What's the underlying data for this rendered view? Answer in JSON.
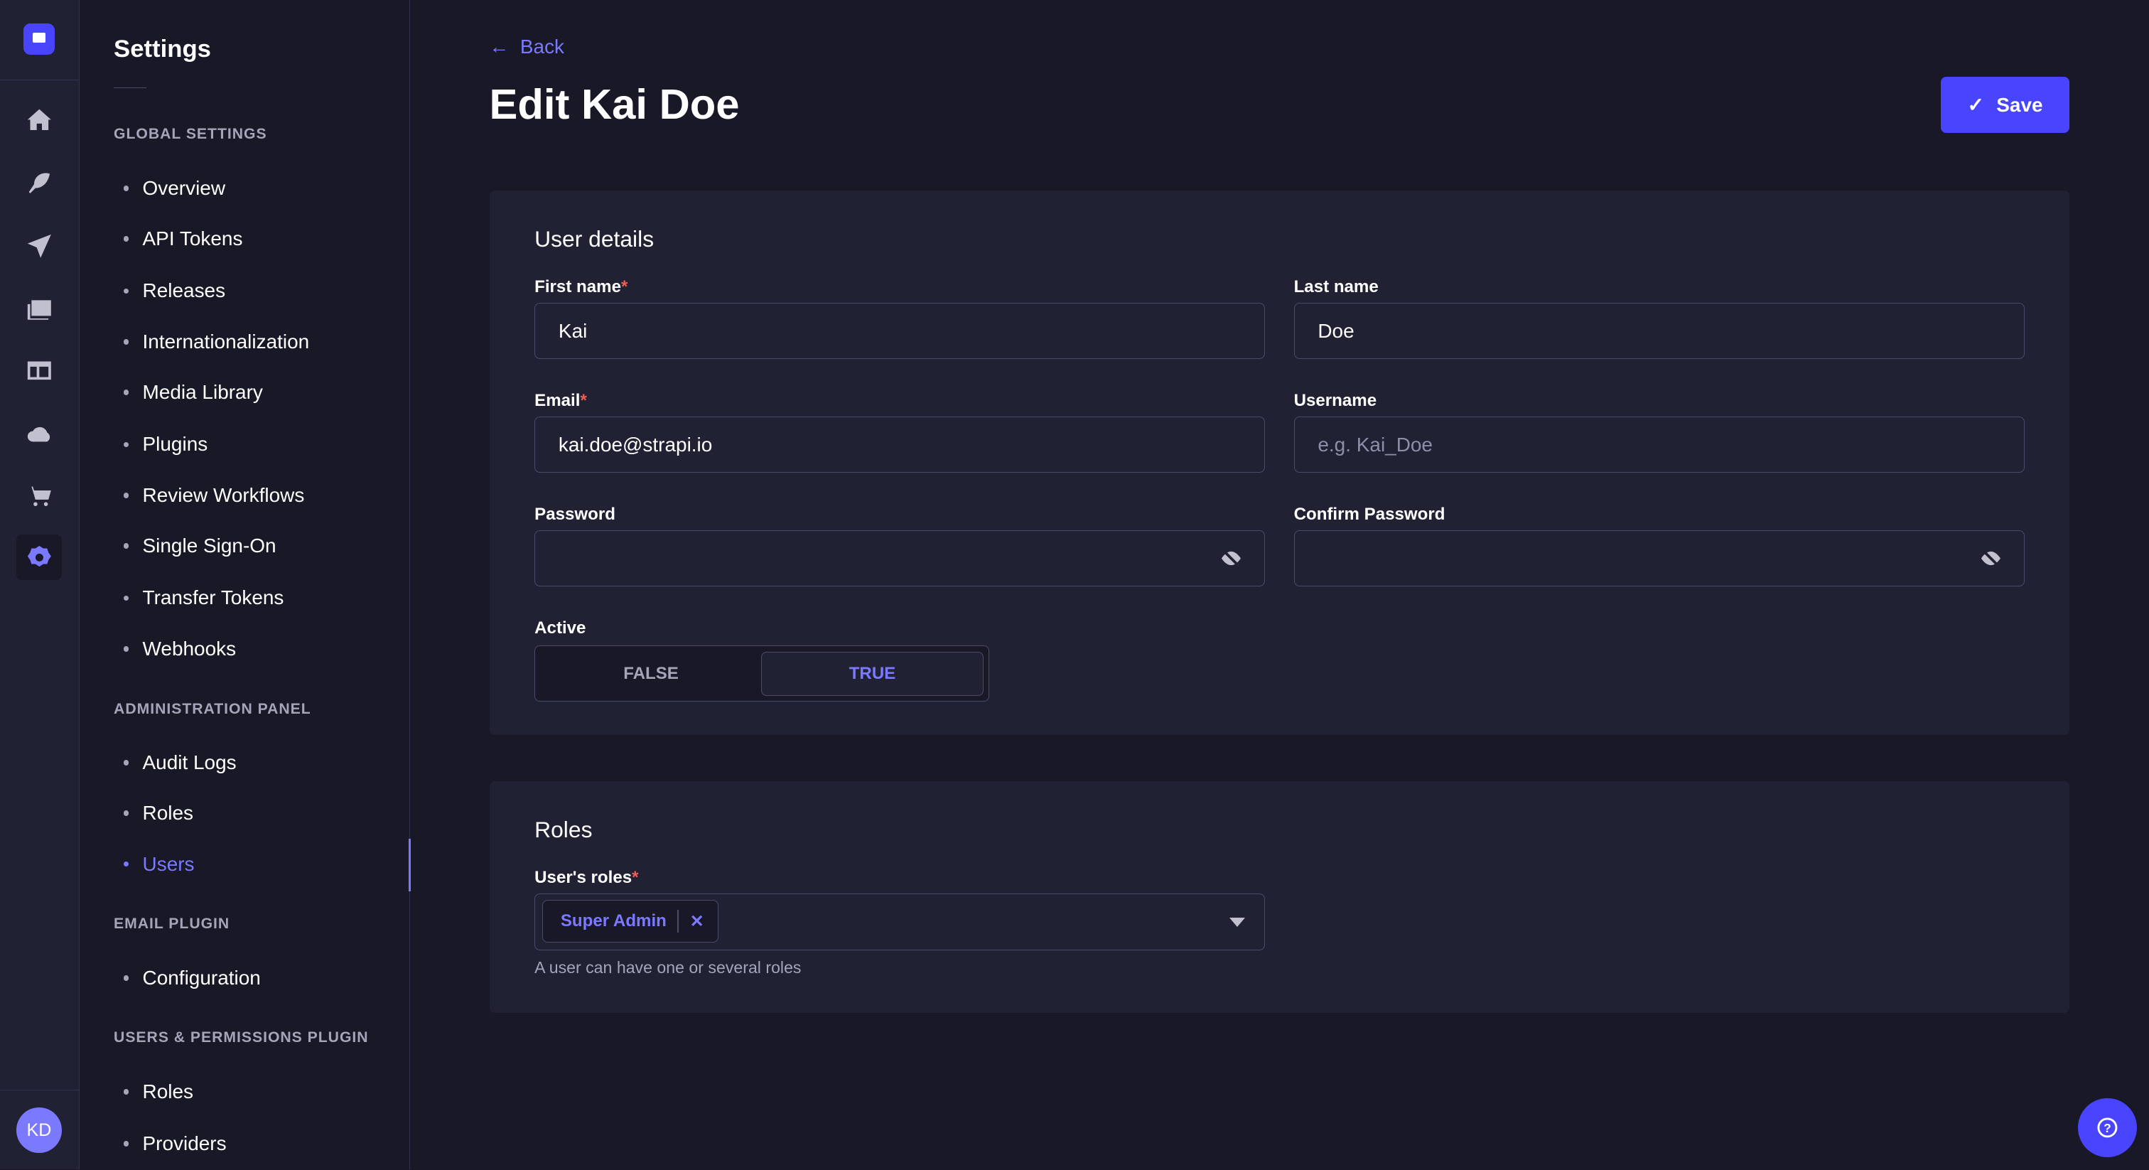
{
  "colors": {
    "primary": "#4945ff",
    "accent": "#7b79ff",
    "required": "#ee5e52"
  },
  "nav": {
    "icons": [
      "home-icon",
      "feather-icon",
      "paper-plane-icon",
      "images-icon",
      "layout-icon",
      "cloud-icon",
      "cart-icon",
      "gear-icon"
    ],
    "avatar": "KD"
  },
  "settings": {
    "title": "Settings",
    "sections": [
      {
        "title": "GLOBAL SETTINGS",
        "items": [
          "Overview",
          "API Tokens",
          "Releases",
          "Internationalization",
          "Media Library",
          "Plugins",
          "Review Workflows",
          "Single Sign-On",
          "Transfer Tokens",
          "Webhooks"
        ]
      },
      {
        "title": "ADMINISTRATION PANEL",
        "items": [
          "Audit Logs",
          "Roles",
          "Users"
        ]
      },
      {
        "title": "EMAIL PLUGIN",
        "items": [
          "Configuration"
        ]
      },
      {
        "title": "USERS & PERMISSIONS PLUGIN",
        "items": [
          "Roles",
          "Providers"
        ]
      }
    ],
    "active": "Users"
  },
  "header": {
    "back": "Back",
    "title": "Edit Kai Doe",
    "save": "Save"
  },
  "details": {
    "title": "User details",
    "first_name": {
      "label": "First name",
      "required": "*",
      "value": "Kai"
    },
    "last_name": {
      "label": "Last name",
      "value": "Doe"
    },
    "email": {
      "label": "Email",
      "required": "*",
      "value": "kai.doe@strapi.io"
    },
    "username": {
      "label": "Username",
      "placeholder": "e.g. Kai_Doe"
    },
    "password": {
      "label": "Password"
    },
    "confirm_password": {
      "label": "Confirm Password"
    },
    "active": {
      "label": "Active",
      "false": "FALSE",
      "true": "TRUE",
      "value": true
    }
  },
  "roles": {
    "title": "Roles",
    "label": "User's roles",
    "required": "*",
    "selected": [
      "Super Admin"
    ],
    "hint": "A user can have one or several roles"
  }
}
